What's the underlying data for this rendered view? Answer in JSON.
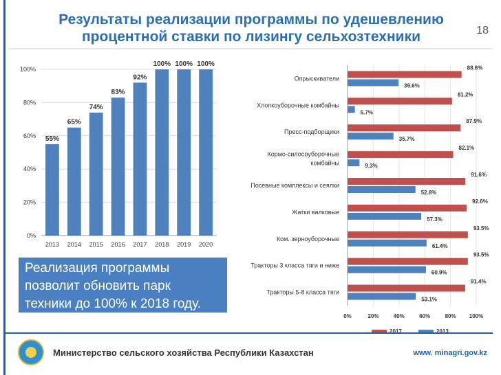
{
  "header": {
    "title_line1": "Результаты реализации программы по удешевлению",
    "title_line2": "процентной ставки по лизингу сельхозтехники",
    "page_number": "18"
  },
  "callout": {
    "text": "Реализация программы\nпозволит обновить парк\nтехники до 100% к 2018 году."
  },
  "footer": {
    "ministry": "Министерство сельского хозяйства Республики Казахстан",
    "website": "www. minagri.gov.kz"
  },
  "colors": {
    "blue": "#4f81bd",
    "red": "#c0504d",
    "title": "#2a6fb5"
  },
  "chart_data": [
    {
      "type": "bar",
      "title": "",
      "categories": [
        "2013",
        "2014",
        "2015",
        "2016",
        "2017",
        "2018",
        "2019",
        "2020"
      ],
      "values": [
        55,
        65,
        74,
        83,
        92,
        100,
        100,
        100
      ],
      "data_labels": [
        "55%",
        "65%",
        "74%",
        "83%",
        "92%",
        "100%",
        "100%",
        "100%"
      ],
      "yticks": [
        "0%",
        "20%",
        "40%",
        "60%",
        "80%",
        "100%"
      ],
      "ylim": [
        0,
        100
      ],
      "grid": true,
      "xlabel": "",
      "ylabel": ""
    },
    {
      "type": "bar",
      "orientation": "horizontal",
      "categories": [
        "Опрыскиватели",
        "Хлопкоуборочные комбайны",
        "Пресс-подборщики",
        "Кормо-силосоуборочные комбайны",
        "Посевные комплексы и сеялки",
        "Жатки валковые",
        "Ком. зерноуборочные",
        "Тракторы 3 класса тяги и ниже",
        "Тракторы 5-8 класса тяги"
      ],
      "category_lines": [
        [
          "Опрыскиватели"
        ],
        [
          "Хлопкоуборочные комбайны"
        ],
        [
          "Пресс-подборщики"
        ],
        [
          "Кормо-силосоуборочные",
          "комбайны"
        ],
        [
          "Посевные комплексы и сеялки"
        ],
        [
          "Жатки валковые"
        ],
        [
          "Ком. зерноуборочные"
        ],
        [
          "Тракторы 3 класса тяги и ниже"
        ],
        [
          "Тракторы 5-8 класса тяги"
        ]
      ],
      "series": [
        {
          "name": "2017",
          "values": [
            88.6,
            81.2,
            87.9,
            82.1,
            91.6,
            92.6,
            93.5,
            93.5,
            91.4
          ],
          "labels": [
            "88.6%",
            "81.2%",
            "87.9%",
            "82.1%",
            "91.6%",
            "92.6%",
            "93.5%",
            "93.5%",
            "91.4%"
          ]
        },
        {
          "name": "2013",
          "values": [
            39.6,
            5.7,
            35.7,
            9.3,
            52.8,
            57.3,
            61.4,
            60.9,
            53.1
          ],
          "labels": [
            "39.6%",
            "5.7%",
            "35.7%",
            "9.3%",
            "52.8%",
            "57.3%",
            "61.4%",
            "60.9%",
            "53.1%"
          ]
        }
      ],
      "xticks": [
        "0%",
        "20%",
        "40%",
        "60%",
        "80%",
        "100%"
      ],
      "xlim": [
        0,
        100
      ],
      "legend_position": "bottom",
      "grid": true
    }
  ]
}
